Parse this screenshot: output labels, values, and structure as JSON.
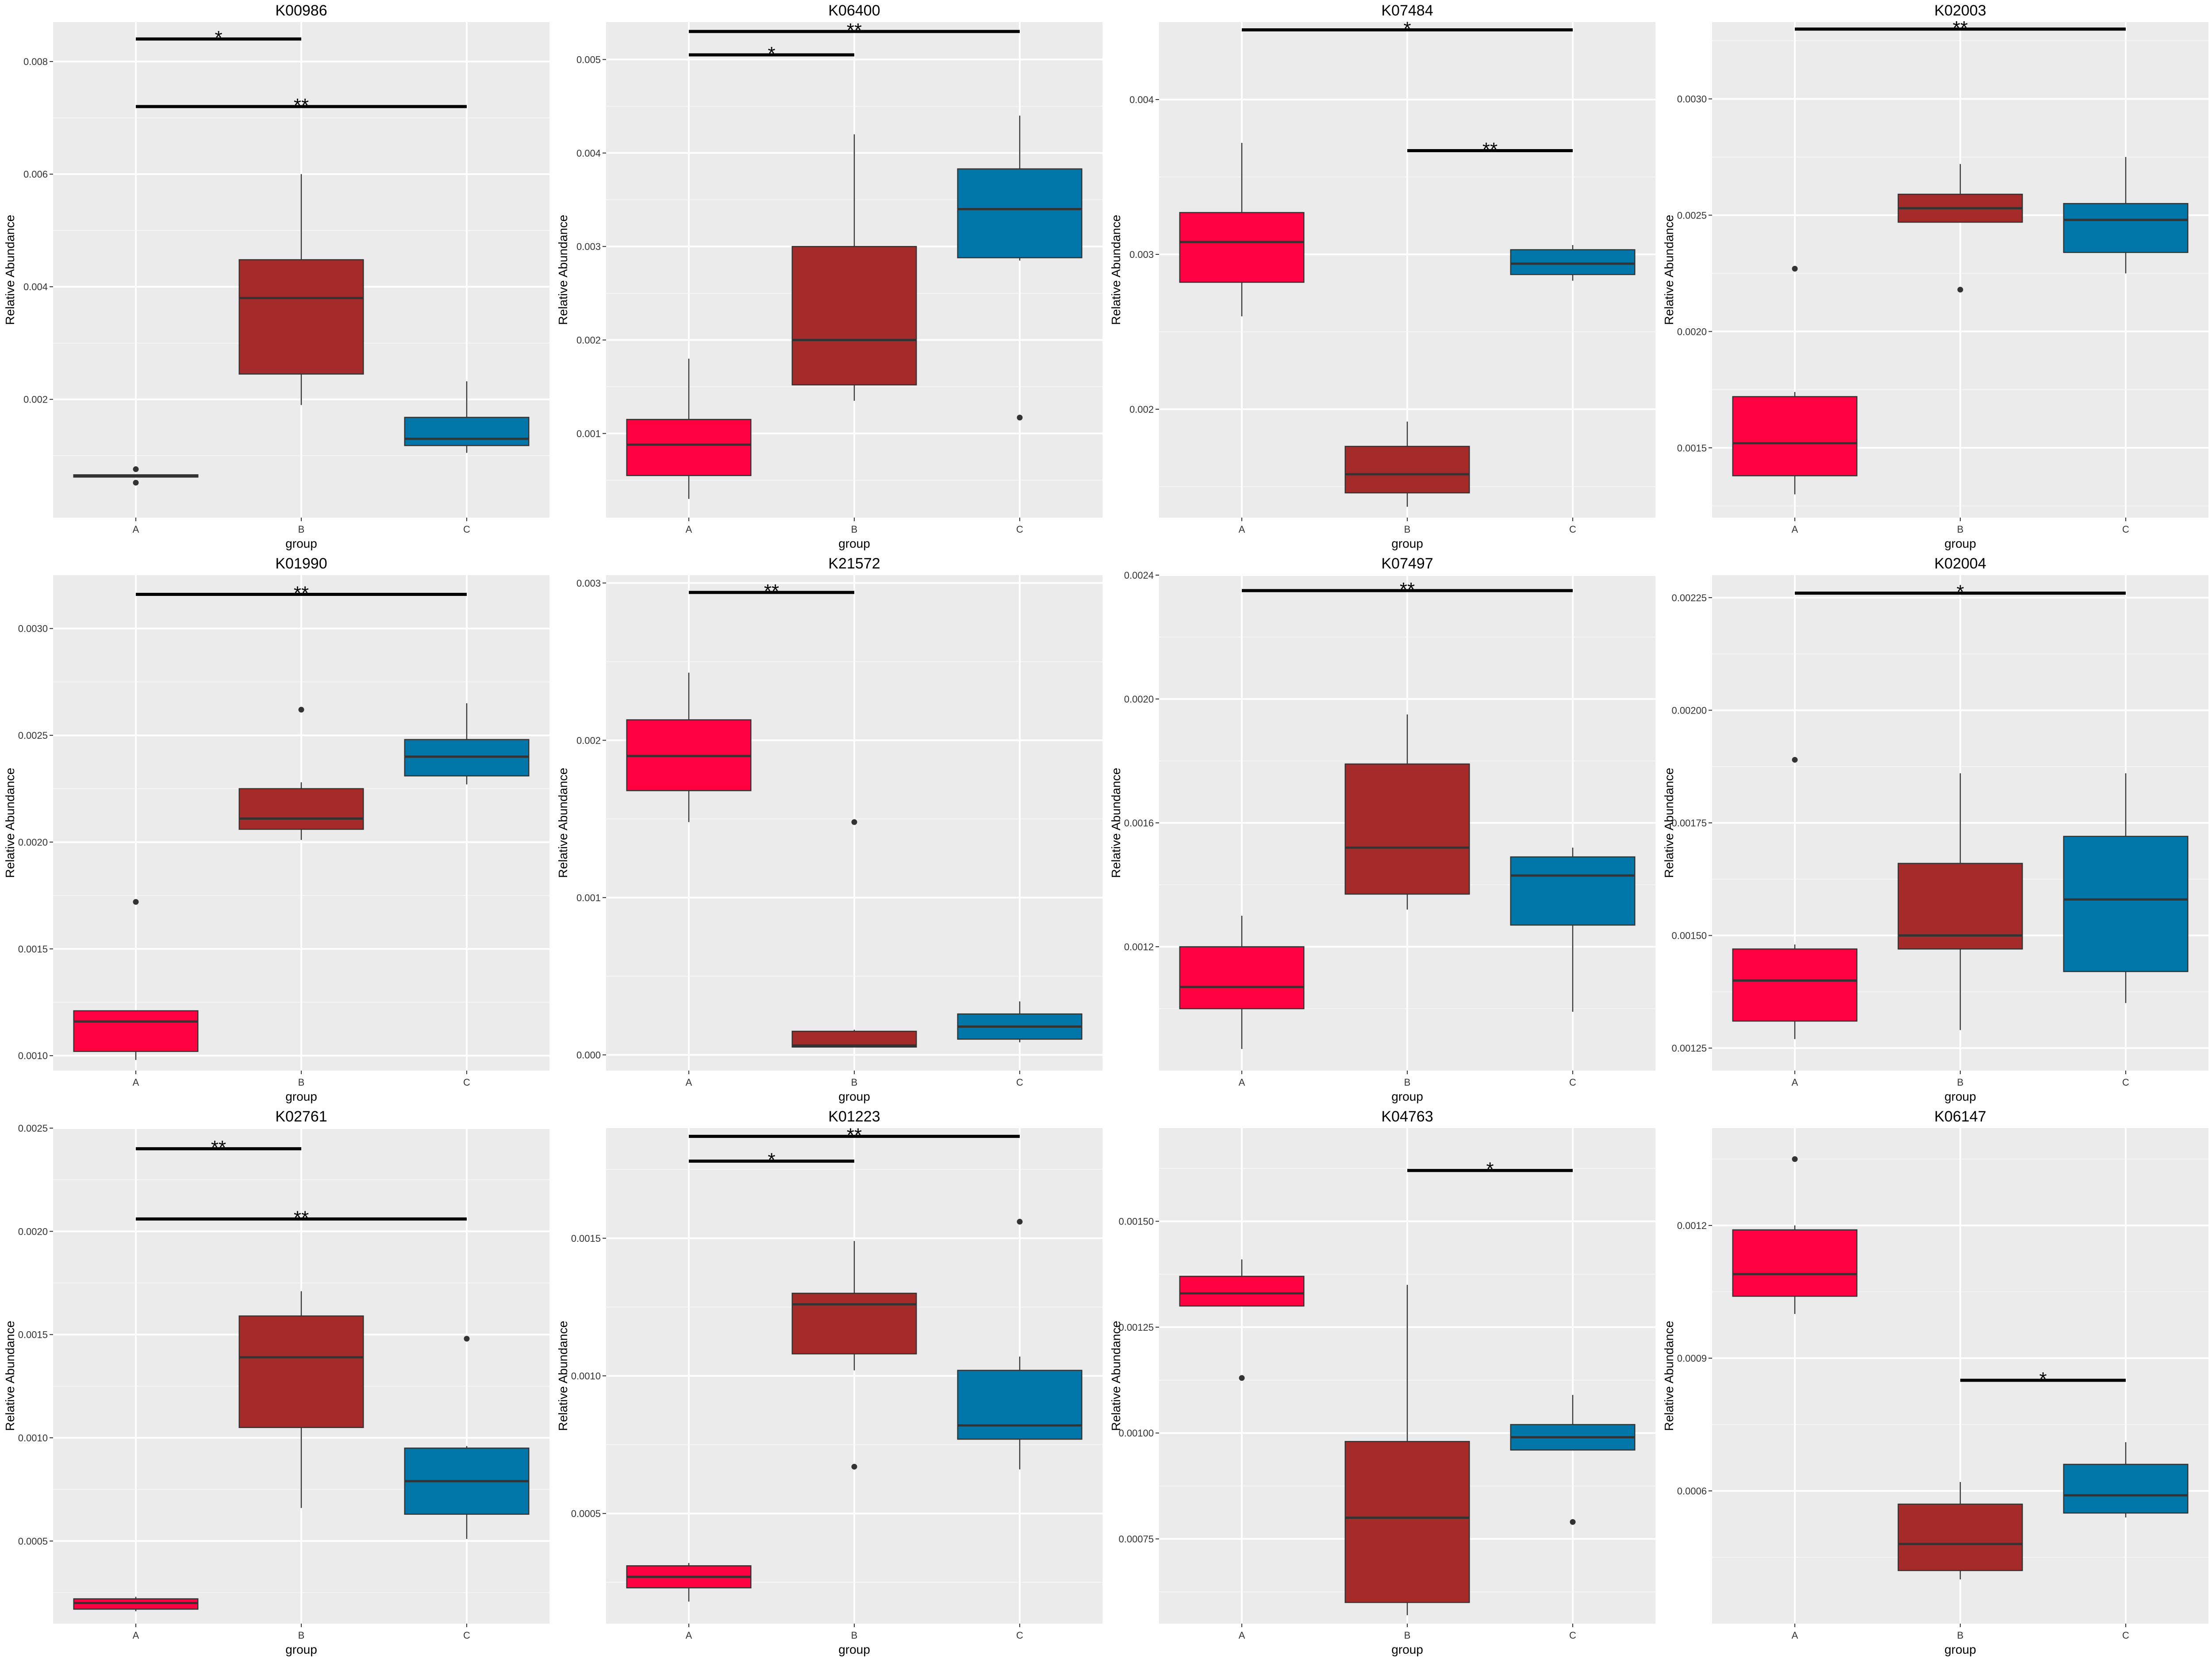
{
  "chart_data": [
    {
      "type": "box",
      "title": "K00986",
      "xlabel": "group",
      "ylabel": "Relative Abundance",
      "categories": [
        "A",
        "B",
        "C"
      ],
      "ylim": [
        -0.0001,
        0.0087
      ],
      "yticks": [
        0.002,
        0.004,
        0.006,
        0.008
      ],
      "ytick_labels": [
        "0.002",
        "0.004",
        "0.006",
        "0.008"
      ],
      "boxes": [
        {
          "group": "A",
          "q1": 0.00062,
          "median": 0.00064,
          "q3": 0.00066,
          "whisker_low": 0.00062,
          "whisker_high": 0.00066,
          "outliers": [
            0.00076,
            0.00052
          ]
        },
        {
          "group": "B",
          "q1": 0.00245,
          "median": 0.0038,
          "q3": 0.00448,
          "whisker_low": 0.0019,
          "whisker_high": 0.006,
          "outliers": []
        },
        {
          "group": "C",
          "q1": 0.00118,
          "median": 0.0013,
          "q3": 0.00168,
          "whisker_low": 0.00105,
          "whisker_high": 0.00232,
          "outliers": []
        }
      ],
      "significance": [
        {
          "from": "A",
          "to": "B",
          "y": 0.0084,
          "label": "*"
        },
        {
          "from": "A",
          "to": "C",
          "y": 0.0072,
          "label": "**"
        }
      ]
    },
    {
      "type": "box",
      "title": "K06400",
      "xlabel": "group",
      "ylabel": "Relative Abundance",
      "categories": [
        "A",
        "B",
        "C"
      ],
      "ylim": [
        0.0001,
        0.0054
      ],
      "yticks": [
        0.001,
        0.002,
        0.003,
        0.004,
        0.005
      ],
      "ytick_labels": [
        "0.001",
        "0.002",
        "0.003",
        "0.004",
        "0.005"
      ],
      "boxes": [
        {
          "group": "A",
          "q1": 0.00055,
          "median": 0.00088,
          "q3": 0.00115,
          "whisker_low": 0.0003,
          "whisker_high": 0.0018,
          "outliers": []
        },
        {
          "group": "B",
          "q1": 0.00152,
          "median": 0.002,
          "q3": 0.003,
          "whisker_low": 0.00135,
          "whisker_high": 0.0042,
          "outliers": []
        },
        {
          "group": "C",
          "q1": 0.00288,
          "median": 0.0034,
          "q3": 0.00383,
          "whisker_low": 0.00285,
          "whisker_high": 0.0044,
          "outliers": [
            0.00117
          ]
        }
      ],
      "significance": [
        {
          "from": "A",
          "to": "B",
          "y": 0.00505,
          "label": "*"
        },
        {
          "from": "A",
          "to": "C",
          "y": 0.0053,
          "label": "**"
        }
      ]
    },
    {
      "type": "box",
      "title": "K07484",
      "xlabel": "group",
      "ylabel": "Relative Abundance",
      "categories": [
        "A",
        "B",
        "C"
      ],
      "ylim": [
        0.0013,
        0.0045
      ],
      "yticks": [
        0.002,
        0.003,
        0.004
      ],
      "ytick_labels": [
        "0.002",
        "0.003",
        "0.004"
      ],
      "boxes": [
        {
          "group": "A",
          "q1": 0.00282,
          "median": 0.00308,
          "q3": 0.00327,
          "whisker_low": 0.0026,
          "whisker_high": 0.00372,
          "outliers": []
        },
        {
          "group": "B",
          "q1": 0.00146,
          "median": 0.00158,
          "q3": 0.00176,
          "whisker_low": 0.00137,
          "whisker_high": 0.00192,
          "outliers": []
        },
        {
          "group": "C",
          "q1": 0.00287,
          "median": 0.00294,
          "q3": 0.00303,
          "whisker_low": 0.00283,
          "whisker_high": 0.00306,
          "outliers": []
        }
      ],
      "significance": [
        {
          "from": "A",
          "to": "C",
          "y": 0.00445,
          "label": "*"
        },
        {
          "from": "B",
          "to": "C",
          "y": 0.00367,
          "label": "**"
        }
      ]
    },
    {
      "type": "box",
      "title": "K02003",
      "xlabel": "group",
      "ylabel": "Relative Abundance",
      "categories": [
        "A",
        "B",
        "C"
      ],
      "ylim": [
        0.0012,
        0.00333
      ],
      "yticks": [
        0.0015,
        0.002,
        0.0025,
        0.003
      ],
      "ytick_labels": [
        "0.0015",
        "0.0020",
        "0.0025",
        "0.0030"
      ],
      "boxes": [
        {
          "group": "A",
          "q1": 0.00138,
          "median": 0.00152,
          "q3": 0.00172,
          "whisker_low": 0.0013,
          "whisker_high": 0.00174,
          "outliers": [
            0.00227
          ]
        },
        {
          "group": "B",
          "q1": 0.00247,
          "median": 0.00253,
          "q3": 0.00259,
          "whisker_low": 0.00247,
          "whisker_high": 0.00272,
          "outliers": [
            0.00218
          ]
        },
        {
          "group": "C",
          "q1": 0.00234,
          "median": 0.00248,
          "q3": 0.00255,
          "whisker_low": 0.00225,
          "whisker_high": 0.00275,
          "outliers": []
        }
      ],
      "significance": [
        {
          "from": "A",
          "to": "C",
          "y": 0.0033,
          "label": "**"
        }
      ]
    },
    {
      "type": "box",
      "title": "K01990",
      "xlabel": "group",
      "ylabel": "Relative Abundance",
      "categories": [
        "A",
        "B",
        "C"
      ],
      "ylim": [
        0.00093,
        0.00325
      ],
      "yticks": [
        0.001,
        0.0015,
        0.002,
        0.0025,
        0.003
      ],
      "ytick_labels": [
        "0.0010",
        "0.0015",
        "0.0020",
        "0.0025",
        "0.0030"
      ],
      "boxes": [
        {
          "group": "A",
          "q1": 0.00102,
          "median": 0.00116,
          "q3": 0.00121,
          "whisker_low": 0.00098,
          "whisker_high": 0.00121,
          "outliers": [
            0.00172
          ]
        },
        {
          "group": "B",
          "q1": 0.00206,
          "median": 0.00211,
          "q3": 0.00225,
          "whisker_low": 0.00201,
          "whisker_high": 0.00228,
          "outliers": [
            0.00262
          ]
        },
        {
          "group": "C",
          "q1": 0.00231,
          "median": 0.0024,
          "q3": 0.00248,
          "whisker_low": 0.00227,
          "whisker_high": 0.00265,
          "outliers": []
        }
      ],
      "significance": [
        {
          "from": "A",
          "to": "C",
          "y": 0.00316,
          "label": "**"
        }
      ]
    },
    {
      "type": "box",
      "title": "K21572",
      "xlabel": "group",
      "ylabel": "Relative Abundance",
      "categories": [
        "A",
        "B",
        "C"
      ],
      "ylim": [
        -0.0001,
        0.00305
      ],
      "yticks": [
        0,
        0.001,
        0.002,
        0.003
      ],
      "ytick_labels": [
        "0.000",
        "0.001",
        "0.002",
        "0.003"
      ],
      "boxes": [
        {
          "group": "A",
          "q1": 0.00168,
          "median": 0.0019,
          "q3": 0.00213,
          "whisker_low": 0.00148,
          "whisker_high": 0.00243,
          "outliers": []
        },
        {
          "group": "B",
          "q1": 5e-05,
          "median": 6e-05,
          "q3": 0.00015,
          "whisker_low": 5e-05,
          "whisker_high": 0.00016,
          "outliers": [
            0.00148
          ]
        },
        {
          "group": "C",
          "q1": 0.0001,
          "median": 0.00018,
          "q3": 0.00026,
          "whisker_low": 8e-05,
          "whisker_high": 0.00034,
          "outliers": []
        }
      ],
      "significance": [
        {
          "from": "A",
          "to": "B",
          "y": 0.00294,
          "label": "**"
        }
      ]
    },
    {
      "type": "box",
      "title": "K07497",
      "xlabel": "group",
      "ylabel": "Relative Abundance",
      "categories": [
        "A",
        "B",
        "C"
      ],
      "ylim": [
        0.0008,
        0.0024
      ],
      "yticks": [
        0.0012,
        0.0016,
        0.002,
        0.0024
      ],
      "ytick_labels": [
        "0.0012",
        "0.0016",
        "0.0020",
        "0.0024"
      ],
      "boxes": [
        {
          "group": "A",
          "q1": 0.001,
          "median": 0.00107,
          "q3": 0.0012,
          "whisker_low": 0.00087,
          "whisker_high": 0.0013,
          "outliers": []
        },
        {
          "group": "B",
          "q1": 0.00137,
          "median": 0.00152,
          "q3": 0.00179,
          "whisker_low": 0.00132,
          "whisker_high": 0.00195,
          "outliers": []
        },
        {
          "group": "C",
          "q1": 0.00127,
          "median": 0.00143,
          "q3": 0.00149,
          "whisker_low": 0.00099,
          "whisker_high": 0.00152,
          "outliers": []
        }
      ],
      "significance": [
        {
          "from": "A",
          "to": "C",
          "y": 0.00235,
          "label": "**"
        }
      ]
    },
    {
      "type": "box",
      "title": "K02004",
      "xlabel": "group",
      "ylabel": "Relative Abundance",
      "categories": [
        "A",
        "B",
        "C"
      ],
      "ylim": [
        0.0012,
        0.0023
      ],
      "yticks": [
        0.00125,
        0.0015,
        0.00175,
        0.002,
        0.00225
      ],
      "ytick_labels": [
        "0.00125",
        "0.00150",
        "0.00175",
        "0.00200",
        "0.00225"
      ],
      "boxes": [
        {
          "group": "A",
          "q1": 0.00131,
          "median": 0.0014,
          "q3": 0.00147,
          "whisker_low": 0.00127,
          "whisker_high": 0.00148,
          "outliers": [
            0.00189
          ]
        },
        {
          "group": "B",
          "q1": 0.00147,
          "median": 0.0015,
          "q3": 0.00166,
          "whisker_low": 0.00129,
          "whisker_high": 0.00186,
          "outliers": []
        },
        {
          "group": "C",
          "q1": 0.00142,
          "median": 0.00158,
          "q3": 0.00172,
          "whisker_low": 0.00135,
          "whisker_high": 0.00186,
          "outliers": []
        }
      ],
      "significance": [
        {
          "from": "A",
          "to": "C",
          "y": 0.00226,
          "label": "*"
        }
      ]
    },
    {
      "type": "box",
      "title": "K02761",
      "xlabel": "group",
      "ylabel": "Relative Abundance",
      "categories": [
        "A",
        "B",
        "C"
      ],
      "ylim": [
        0.0001,
        0.0025
      ],
      "yticks": [
        0.0005,
        0.001,
        0.0015,
        0.002,
        0.0025
      ],
      "ytick_labels": [
        "0.0005",
        "0.0010",
        "0.0015",
        "0.0020",
        "0.0025"
      ],
      "boxes": [
        {
          "group": "A",
          "q1": 0.00017,
          "median": 0.0002,
          "q3": 0.00022,
          "whisker_low": 0.00016,
          "whisker_high": 0.00023,
          "outliers": []
        },
        {
          "group": "B",
          "q1": 0.00105,
          "median": 0.00139,
          "q3": 0.00159,
          "whisker_low": 0.00066,
          "whisker_high": 0.00171,
          "outliers": []
        },
        {
          "group": "C",
          "q1": 0.00063,
          "median": 0.00079,
          "q3": 0.00095,
          "whisker_low": 0.00051,
          "whisker_high": 0.00096,
          "outliers": [
            0.00148
          ]
        }
      ],
      "significance": [
        {
          "from": "A",
          "to": "B",
          "y": 0.0024,
          "label": "**"
        },
        {
          "from": "A",
          "to": "C",
          "y": 0.00206,
          "label": "**"
        }
      ]
    },
    {
      "type": "box",
      "title": "K01223",
      "xlabel": "group",
      "ylabel": "Relative Abundance",
      "categories": [
        "A",
        "B",
        "C"
      ],
      "ylim": [
        0.0001,
        0.0019
      ],
      "yticks": [
        0.0005,
        0.001,
        0.0015
      ],
      "ytick_labels": [
        "0.0005",
        "0.0010",
        "0.0015"
      ],
      "boxes": [
        {
          "group": "A",
          "q1": 0.00023,
          "median": 0.00027,
          "q3": 0.00031,
          "whisker_low": 0.00018,
          "whisker_high": 0.00032,
          "outliers": []
        },
        {
          "group": "B",
          "q1": 0.00108,
          "median": 0.00126,
          "q3": 0.0013,
          "whisker_low": 0.00102,
          "whisker_high": 0.00149,
          "outliers": [
            0.00067
          ]
        },
        {
          "group": "C",
          "q1": 0.00077,
          "median": 0.00082,
          "q3": 0.00102,
          "whisker_low": 0.00066,
          "whisker_high": 0.00107,
          "outliers": [
            0.00156
          ]
        }
      ],
      "significance": [
        {
          "from": "A",
          "to": "B",
          "y": 0.00178,
          "label": "*"
        },
        {
          "from": "A",
          "to": "C",
          "y": 0.00187,
          "label": "**"
        }
      ]
    },
    {
      "type": "box",
      "title": "K04763",
      "xlabel": "group",
      "ylabel": "Relative Abundance",
      "categories": [
        "A",
        "B",
        "C"
      ],
      "ylim": [
        0.00055,
        0.00172
      ],
      "yticks": [
        0.00075,
        0.001,
        0.00125,
        0.0015
      ],
      "ytick_labels": [
        "0.00075",
        "0.00100",
        "0.00125",
        "0.00150"
      ],
      "boxes": [
        {
          "group": "A",
          "q1": 0.0013,
          "median": 0.00133,
          "q3": 0.00137,
          "whisker_low": 0.0013,
          "whisker_high": 0.00141,
          "outliers": [
            0.00113
          ]
        },
        {
          "group": "B",
          "q1": 0.0006,
          "median": 0.0008,
          "q3": 0.00098,
          "whisker_low": 0.00057,
          "whisker_high": 0.00135,
          "outliers": []
        },
        {
          "group": "C",
          "q1": 0.00096,
          "median": 0.00099,
          "q3": 0.00102,
          "whisker_low": 0.00096,
          "whisker_high": 0.00109,
          "outliers": [
            0.00079
          ]
        }
      ],
      "significance": [
        {
          "from": "B",
          "to": "C",
          "y": 0.00162,
          "label": "*"
        }
      ]
    },
    {
      "type": "box",
      "title": "K06147",
      "xlabel": "group",
      "ylabel": "Relative Abundance",
      "categories": [
        "A",
        "B",
        "C"
      ],
      "ylim": [
        0.0003,
        0.00142
      ],
      "yticks": [
        0.0006,
        0.0009,
        0.0012
      ],
      "ytick_labels": [
        "0.0006",
        "0.0009",
        "0.0012"
      ],
      "boxes": [
        {
          "group": "A",
          "q1": 0.00104,
          "median": 0.00109,
          "q3": 0.00119,
          "whisker_low": 0.001,
          "whisker_high": 0.0012,
          "outliers": [
            0.00135
          ]
        },
        {
          "group": "B",
          "q1": 0.00042,
          "median": 0.00048,
          "q3": 0.00057,
          "whisker_low": 0.0004,
          "whisker_high": 0.00062,
          "outliers": []
        },
        {
          "group": "C",
          "q1": 0.00055,
          "median": 0.00059,
          "q3": 0.00066,
          "whisker_low": 0.00054,
          "whisker_high": 0.00071,
          "outliers": []
        }
      ],
      "significance": [
        {
          "from": "B",
          "to": "C",
          "y": 0.00085,
          "label": "*"
        }
      ]
    }
  ],
  "group_colors": {
    "A": "#FF0040",
    "B": "#A52A2A",
    "C": "#0077A8"
  },
  "panel_background": "#EBEBEB"
}
